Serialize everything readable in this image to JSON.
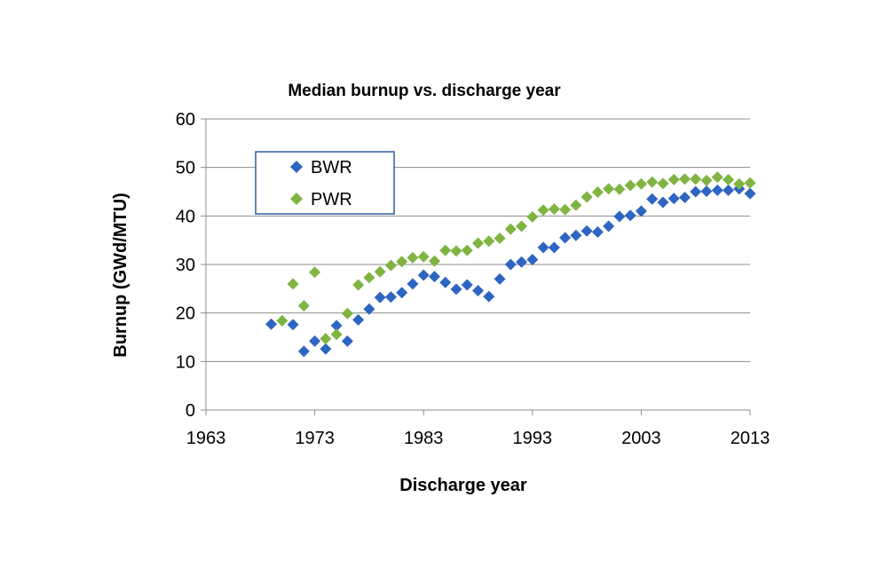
{
  "chart_data": {
    "type": "scatter",
    "title": "Median burnup vs. discharge year",
    "xlabel": "Discharge year",
    "ylabel": "Burnup (GWd/MTU)",
    "xlim": [
      1963,
      2013
    ],
    "ylim": [
      0,
      60
    ],
    "x_ticks": [
      "1963",
      "1973",
      "1983",
      "1993",
      "2003",
      "2013"
    ],
    "y_ticks": [
      "0",
      "10",
      "20",
      "30",
      "40",
      "50",
      "60"
    ],
    "grid": "horizontal",
    "legend_position": "top-left",
    "series": [
      {
        "name": "BWR",
        "color": "#2E64C2",
        "marker": "diamond",
        "points": [
          [
            1969,
            17.7
          ],
          [
            1971,
            17.6
          ],
          [
            1972,
            12.1
          ],
          [
            1973,
            14.2
          ],
          [
            1974,
            12.6
          ],
          [
            1975,
            17.4
          ],
          [
            1976,
            14.2
          ],
          [
            1977,
            18.6
          ],
          [
            1978,
            20.8
          ],
          [
            1979,
            23.2
          ],
          [
            1980,
            23.3
          ],
          [
            1981,
            24.2
          ],
          [
            1982,
            26.0
          ],
          [
            1983,
            27.8
          ],
          [
            1984,
            27.5
          ],
          [
            1985,
            26.3
          ],
          [
            1986,
            24.9
          ],
          [
            1987,
            25.8
          ],
          [
            1988,
            24.6
          ],
          [
            1989,
            23.4
          ],
          [
            1990,
            27.0
          ],
          [
            1991,
            30.0
          ],
          [
            1992,
            30.5
          ],
          [
            1993,
            31.0
          ],
          [
            1994,
            33.5
          ],
          [
            1995,
            33.5
          ],
          [
            1996,
            35.5
          ],
          [
            1997,
            36.0
          ],
          [
            1998,
            36.9
          ],
          [
            1999,
            36.7
          ],
          [
            2000,
            37.9
          ],
          [
            2001,
            39.9
          ],
          [
            2002,
            40.1
          ],
          [
            2003,
            41.0
          ],
          [
            2004,
            43.5
          ],
          [
            2005,
            42.8
          ],
          [
            2006,
            43.6
          ],
          [
            2007,
            43.8
          ],
          [
            2008,
            45.0
          ],
          [
            2009,
            45.1
          ],
          [
            2010,
            45.3
          ],
          [
            2011,
            45.3
          ],
          [
            2012,
            45.6
          ],
          [
            2013,
            44.6
          ]
        ]
      },
      {
        "name": "PWR",
        "color": "#7FB441",
        "marker": "diamond",
        "points": [
          [
            1970,
            18.4
          ],
          [
            1971,
            26.0
          ],
          [
            1972,
            21.5
          ],
          [
            1973,
            28.4
          ],
          [
            1974,
            14.7
          ],
          [
            1975,
            15.6
          ],
          [
            1976,
            19.9
          ],
          [
            1977,
            25.8
          ],
          [
            1978,
            27.3
          ],
          [
            1979,
            28.5
          ],
          [
            1980,
            29.8
          ],
          [
            1981,
            30.6
          ],
          [
            1982,
            31.4
          ],
          [
            1983,
            31.6
          ],
          [
            1984,
            30.7
          ],
          [
            1985,
            32.9
          ],
          [
            1986,
            32.8
          ],
          [
            1987,
            32.9
          ],
          [
            1988,
            34.4
          ],
          [
            1989,
            34.8
          ],
          [
            1990,
            35.4
          ],
          [
            1991,
            37.3
          ],
          [
            1992,
            37.9
          ],
          [
            1993,
            39.8
          ],
          [
            1994,
            41.2
          ],
          [
            1995,
            41.4
          ],
          [
            1996,
            41.3
          ],
          [
            1997,
            42.2
          ],
          [
            1998,
            43.9
          ],
          [
            1999,
            44.9
          ],
          [
            2000,
            45.6
          ],
          [
            2001,
            45.5
          ],
          [
            2002,
            46.3
          ],
          [
            2003,
            46.6
          ],
          [
            2004,
            47.0
          ],
          [
            2005,
            46.7
          ],
          [
            2006,
            47.5
          ],
          [
            2007,
            47.6
          ],
          [
            2008,
            47.6
          ],
          [
            2009,
            47.3
          ],
          [
            2010,
            48.0
          ],
          [
            2011,
            47.5
          ],
          [
            2012,
            46.6
          ],
          [
            2013,
            46.8
          ]
        ]
      }
    ]
  }
}
